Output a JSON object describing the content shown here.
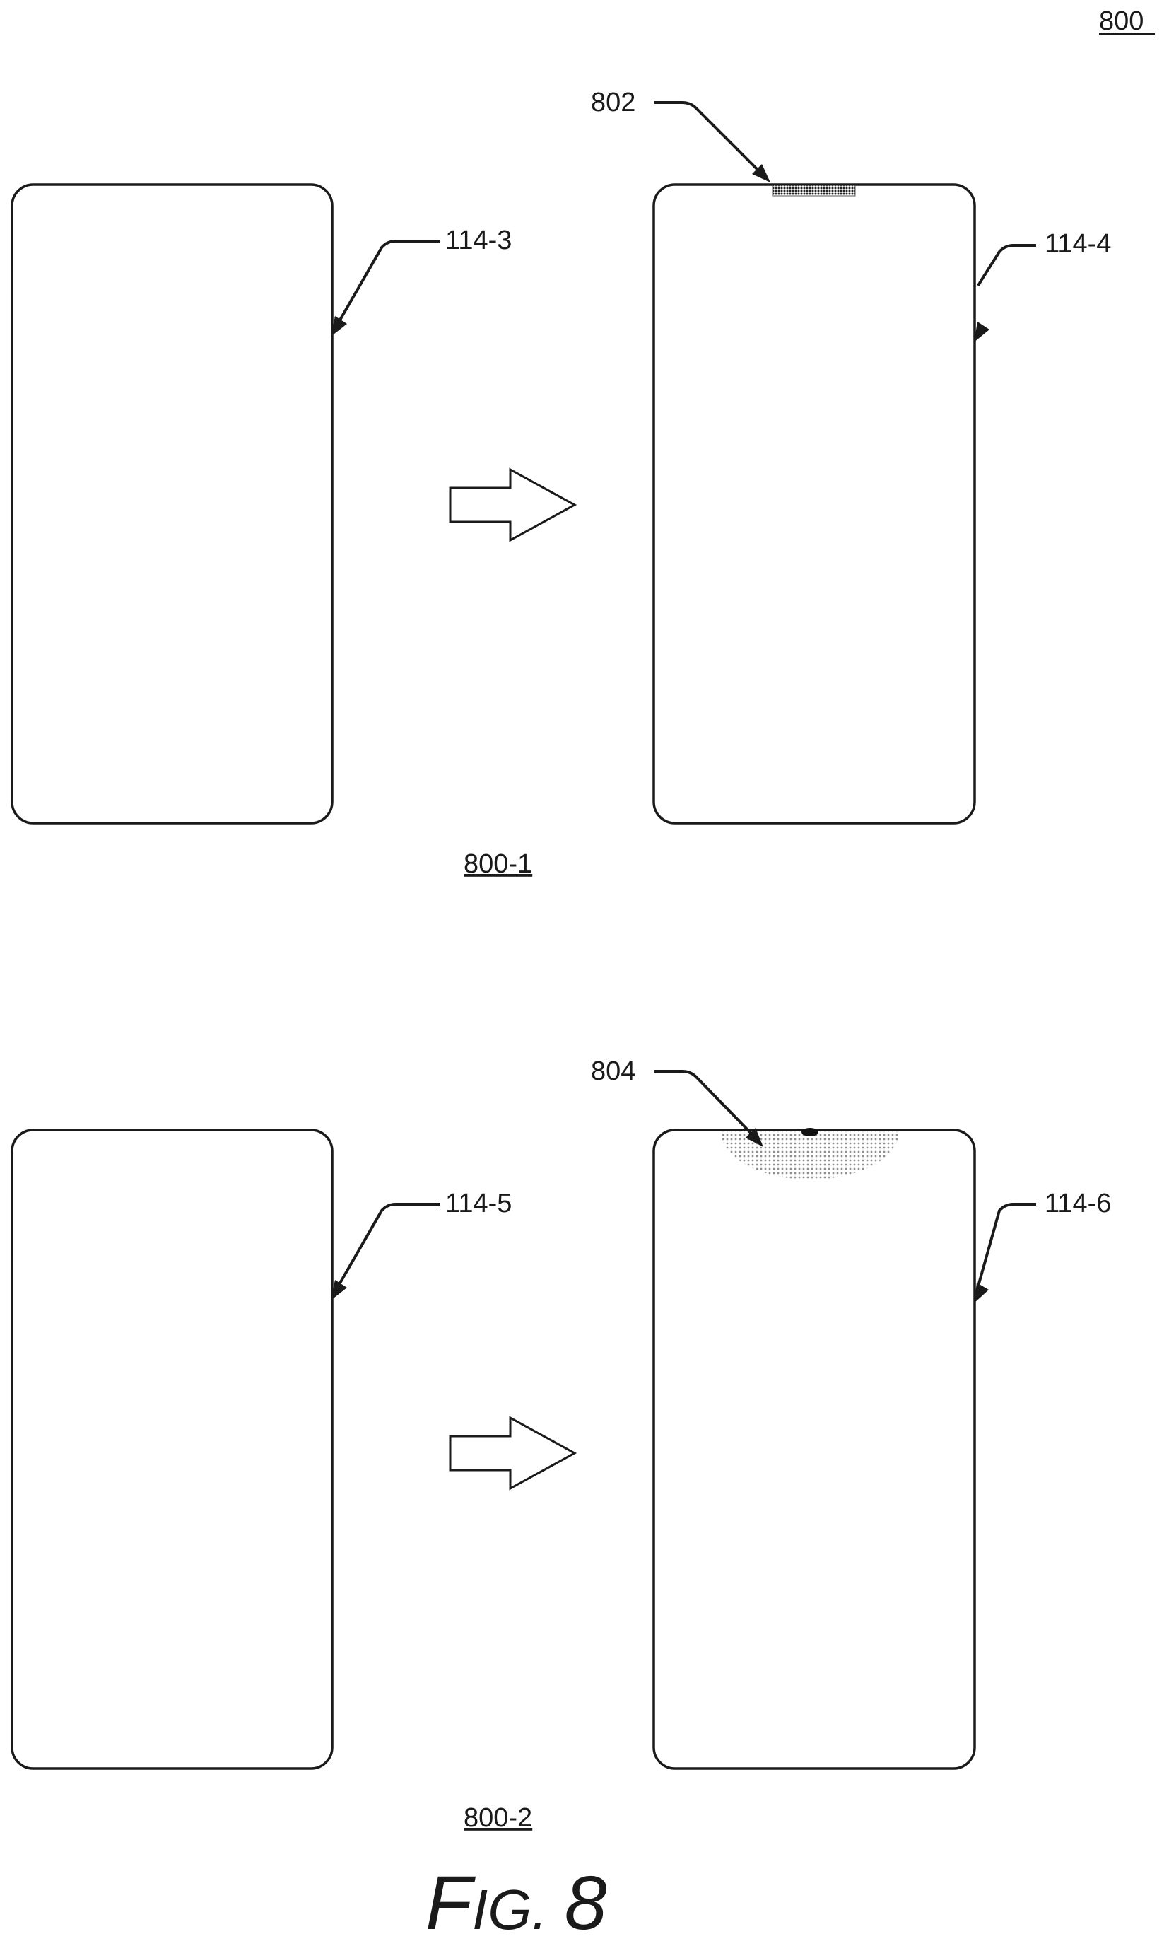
{
  "figure": {
    "number_label": "800",
    "caption_prefix": "F",
    "caption_small": "IG.",
    "caption_number": "8"
  },
  "panel_top": {
    "label": "800-1",
    "left_device": {
      "ref": "114-3"
    },
    "right_device": {
      "ref": "114-4"
    },
    "indicator": {
      "ref": "802"
    }
  },
  "panel_bottom": {
    "label": "800-2",
    "left_device": {
      "ref": "114-5"
    },
    "right_device": {
      "ref": "114-6"
    },
    "indicator": {
      "ref": "804"
    }
  }
}
